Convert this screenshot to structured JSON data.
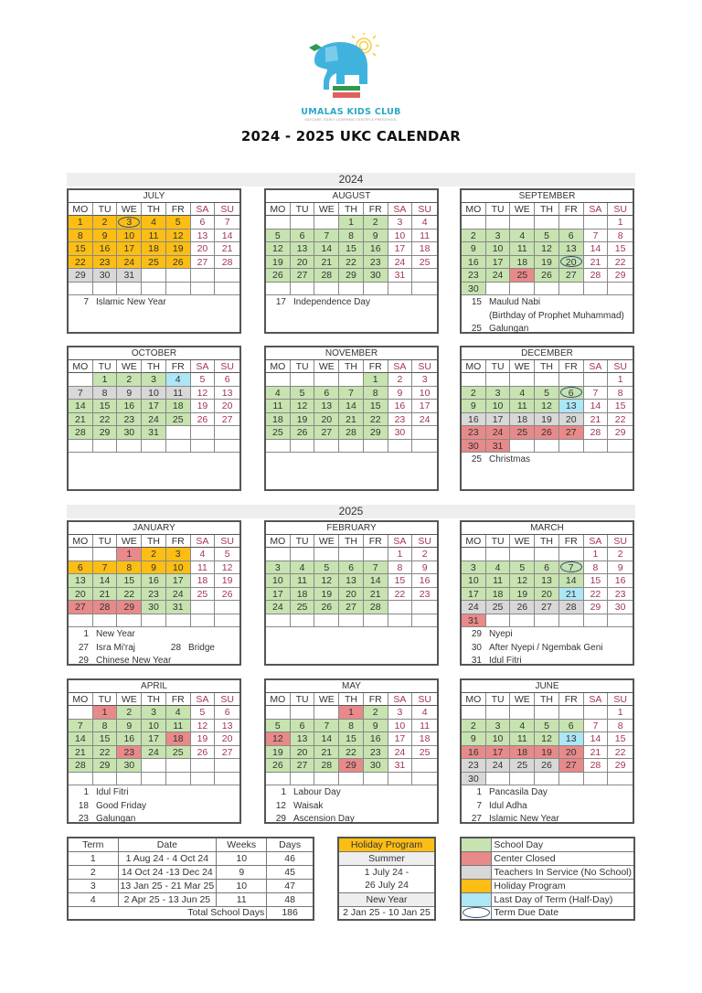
{
  "header": {
    "brand": "UMALAS KIDS CLUB",
    "brand_subtitle": "DAYCARE, EARLY LEARNING CENTER & PRESCHOOL",
    "title": "2024 - 2025 UKC CALENDAR"
  },
  "weekdays": [
    "MO",
    "TU",
    "WE",
    "TH",
    "FR",
    "SA",
    "SU"
  ],
  "colors": {
    "school": "#c7e3b0",
    "closed": "#e8898a",
    "teachers": "#d8d8d8",
    "holiday": "#fcbe14",
    "last_day": "#ade6f5",
    "term_due": "#2e4f7c",
    "weekend_text": "#a3354f"
  },
  "years": [
    {
      "label": "2024",
      "months": [
        {
          "name": "JULY",
          "offset": 0,
          "days": 31,
          "school": [],
          "closed": [],
          "teachers": [
            29,
            30,
            31
          ],
          "holiday": [
            1,
            2,
            3,
            4,
            5,
            8,
            9,
            10,
            11,
            12,
            15,
            16,
            17,
            18,
            19,
            22,
            23,
            24,
            25,
            26
          ],
          "last_day": [],
          "term_due": [
            3
          ],
          "notes": [
            {
              "day": "7",
              "text": "Islamic New Year"
            }
          ]
        },
        {
          "name": "AUGUST",
          "offset": 3,
          "days": 31,
          "school": [
            1,
            2,
            5,
            6,
            7,
            8,
            9,
            12,
            13,
            14,
            15,
            16,
            19,
            20,
            21,
            22,
            23,
            26,
            27,
            28,
            29,
            30
          ],
          "closed": [],
          "teachers": [],
          "holiday": [],
          "last_day": [],
          "term_due": [],
          "notes": [
            {
              "day": "17",
              "text": "Independence Day"
            }
          ]
        },
        {
          "name": "SEPTEMBER",
          "offset": 6,
          "days": 30,
          "school": [
            2,
            3,
            4,
            5,
            6,
            9,
            10,
            11,
            12,
            13,
            16,
            17,
            18,
            19,
            20,
            23,
            24,
            26,
            27,
            30
          ],
          "closed": [
            25
          ],
          "teachers": [],
          "holiday": [],
          "last_day": [],
          "term_due": [
            20
          ],
          "notes": [
            {
              "day": "15",
              "text": "Maulud Nabi"
            },
            {
              "day": "",
              "text": "(Birthday of Prophet Muhammad)"
            },
            {
              "day": "25",
              "text": "Galungan"
            }
          ]
        },
        {
          "name": "OCTOBER",
          "offset": 1,
          "days": 31,
          "school": [
            1,
            2,
            3,
            14,
            15,
            16,
            17,
            18,
            21,
            22,
            23,
            24,
            25,
            28,
            29,
            30,
            31
          ],
          "closed": [],
          "teachers": [
            7,
            8,
            9,
            10,
            11
          ],
          "holiday": [],
          "last_day": [
            4
          ],
          "term_due": [],
          "notes": []
        },
        {
          "name": "NOVEMBER",
          "offset": 4,
          "days": 30,
          "school": [
            1,
            4,
            5,
            6,
            7,
            8,
            11,
            12,
            13,
            14,
            15,
            18,
            19,
            20,
            21,
            22,
            25,
            26,
            27,
            28,
            29
          ],
          "closed": [],
          "teachers": [],
          "holiday": [],
          "last_day": [],
          "term_due": [],
          "notes": []
        },
        {
          "name": "DECEMBER",
          "offset": 6,
          "days": 31,
          "school": [
            2,
            3,
            4,
            5,
            6,
            9,
            10,
            11,
            12
          ],
          "closed": [
            23,
            24,
            25,
            26,
            27,
            30,
            31
          ],
          "teachers": [
            16,
            17,
            18,
            19,
            20
          ],
          "holiday": [],
          "last_day": [
            13
          ],
          "term_due": [
            6
          ],
          "notes": [
            {
              "day": "25",
              "text": "Christmas"
            }
          ]
        }
      ]
    },
    {
      "label": "2025",
      "months": [
        {
          "name": "JANUARY",
          "offset": 2,
          "days": 31,
          "school": [
            13,
            14,
            15,
            16,
            17,
            20,
            21,
            22,
            23,
            24,
            30,
            31
          ],
          "closed": [
            1,
            27,
            28,
            29
          ],
          "teachers": [],
          "holiday": [
            2,
            3,
            6,
            7,
            8,
            9,
            10
          ],
          "last_day": [],
          "term_due": [],
          "notes": [
            {
              "day": "1",
              "text": "New Year"
            },
            {
              "day": "27",
              "text": "Isra Mi'raj",
              "day2": "28",
              "text2": "Bridge"
            },
            {
              "day": "29",
              "text": "Chinese New Year"
            }
          ]
        },
        {
          "name": "FEBRUARY",
          "offset": 5,
          "days": 28,
          "school": [
            3,
            4,
            5,
            6,
            7,
            10,
            11,
            12,
            13,
            14,
            17,
            18,
            19,
            20,
            21,
            24,
            25,
            26,
            27,
            28
          ],
          "closed": [],
          "teachers": [],
          "holiday": [],
          "last_day": [],
          "term_due": [],
          "notes": []
        },
        {
          "name": "MARCH",
          "offset": 5,
          "days": 31,
          "school": [
            3,
            4,
            5,
            6,
            7,
            10,
            11,
            12,
            13,
            14,
            17,
            18,
            19,
            20
          ],
          "closed": [
            31
          ],
          "teachers": [
            24,
            25,
            26,
            27,
            28
          ],
          "holiday": [],
          "last_day": [
            21
          ],
          "term_due": [
            7
          ],
          "notes": [
            {
              "day": "29",
              "text": "Nyepi"
            },
            {
              "day": "30",
              "text": "After Nyepi / Ngembak Geni"
            },
            {
              "day": "31",
              "text": "Idul Fitri"
            }
          ]
        },
        {
          "name": "APRIL",
          "offset": 1,
          "days": 30,
          "school": [
            2,
            3,
            4,
            7,
            8,
            9,
            10,
            11,
            14,
            15,
            16,
            17,
            21,
            22,
            24,
            25,
            28,
            29,
            30
          ],
          "closed": [
            1,
            18,
            23
          ],
          "teachers": [],
          "holiday": [],
          "last_day": [],
          "term_due": [],
          "notes": [
            {
              "day": "1",
              "text": "Idul Fitri"
            },
            {
              "day": "18",
              "text": "Good Friday"
            },
            {
              "day": "23",
              "text": "Galungan"
            }
          ]
        },
        {
          "name": "MAY",
          "offset": 3,
          "days": 31,
          "school": [
            2,
            5,
            6,
            7,
            8,
            9,
            13,
            14,
            15,
            16,
            19,
            20,
            21,
            22,
            23,
            26,
            27,
            28,
            30
          ],
          "closed": [
            1,
            12,
            29
          ],
          "teachers": [],
          "holiday": [],
          "last_day": [],
          "term_due": [],
          "notes": [
            {
              "day": "1",
              "text": "Labour Day"
            },
            {
              "day": "12",
              "text": "Waisak"
            },
            {
              "day": "29",
              "text": "Ascension Day"
            }
          ]
        },
        {
          "name": "JUNE",
          "offset": 6,
          "days": 30,
          "school": [
            2,
            3,
            4,
            5,
            6,
            9,
            10,
            11,
            12
          ],
          "closed": [
            16,
            17,
            18,
            19,
            20,
            27
          ],
          "teachers": [
            23,
            24,
            25,
            26,
            30
          ],
          "holiday": [],
          "last_day": [
            13
          ],
          "term_due": [],
          "notes": [
            {
              "day": "1",
              "text": "Pancasila Day"
            },
            {
              "day": "7",
              "text": "Idul Adha"
            },
            {
              "day": "27",
              "text": "Islamic New Year"
            }
          ]
        }
      ]
    }
  ],
  "terms": {
    "headers": [
      "Term",
      "Date",
      "Weeks",
      "Days"
    ],
    "rows": [
      [
        "1",
        "1 Aug 24 - 4 Oct 24",
        "10",
        "46"
      ],
      [
        "2",
        "14 Oct 24 -13 Dec 24",
        "9",
        "45"
      ],
      [
        "3",
        "13 Jan 25 - 21 Mar 25",
        "10",
        "47"
      ],
      [
        "4",
        "2 Apr 25 - 13 Jun 25",
        "11",
        "48"
      ]
    ],
    "total_label": "Total School Days",
    "total_value": "186"
  },
  "holiday_program": {
    "title": "Holiday Program",
    "summer_label": "Summer",
    "summer_line1": "1 July 24 -",
    "summer_line2": "26 July 24",
    "newyear_label": "New Year",
    "newyear_dates": "2 Jan 25 - 10 Jan 25"
  },
  "legend": [
    {
      "key": "school",
      "label": "School Day"
    },
    {
      "key": "closed",
      "label": "Center Closed"
    },
    {
      "key": "teachers",
      "label": "Teachers In Service (No School)"
    },
    {
      "key": "holiday",
      "label": "Holiday Program"
    },
    {
      "key": "last_day",
      "label": "Last Day of Term (Half-Day)"
    },
    {
      "key": "term_due",
      "label": "Term Due Date"
    }
  ]
}
